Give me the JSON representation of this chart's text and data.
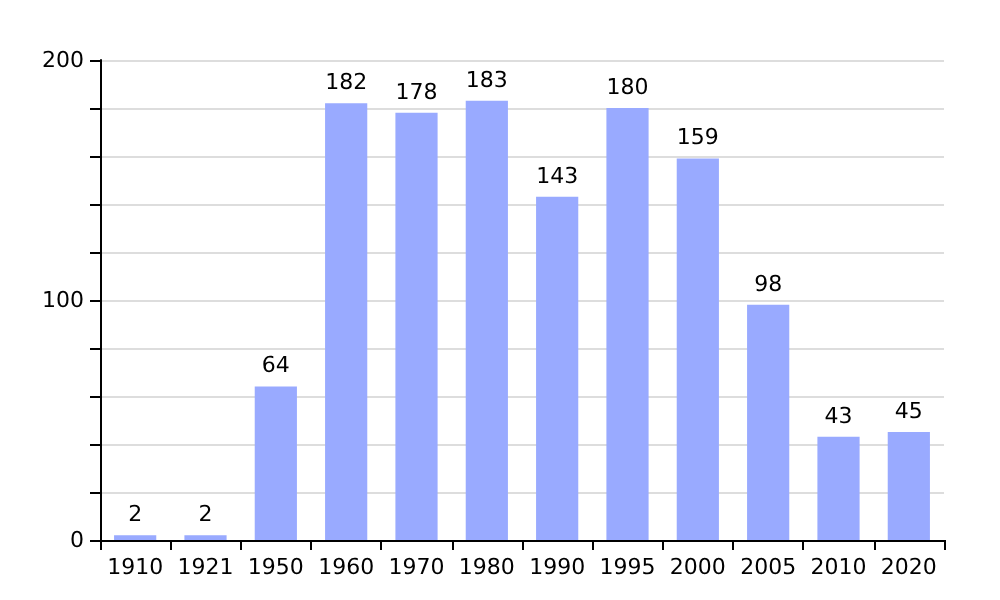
{
  "chart_data": {
    "type": "bar",
    "categories": [
      "1910",
      "1921",
      "1950",
      "1960",
      "1970",
      "1980",
      "1990",
      "1995",
      "2000",
      "2005",
      "2010",
      "2020"
    ],
    "values": [
      2,
      2,
      64,
      182,
      178,
      183,
      143,
      180,
      159,
      98,
      43,
      45
    ],
    "color": "#99aaff",
    "ylim": [
      0,
      200
    ],
    "yticks": [
      0,
      {
        "value": 20,
        "label": null
      },
      {
        "value": 40,
        "label": null
      },
      {
        "value": 60,
        "label": null
      },
      {
        "value": 80,
        "label": null
      },
      100,
      {
        "value": 120,
        "label": null
      },
      {
        "value": 140,
        "label": null
      },
      {
        "value": 160,
        "label": null
      },
      {
        "value": 180,
        "label": null
      },
      200
    ],
    "grid": true,
    "data_labels": true
  }
}
